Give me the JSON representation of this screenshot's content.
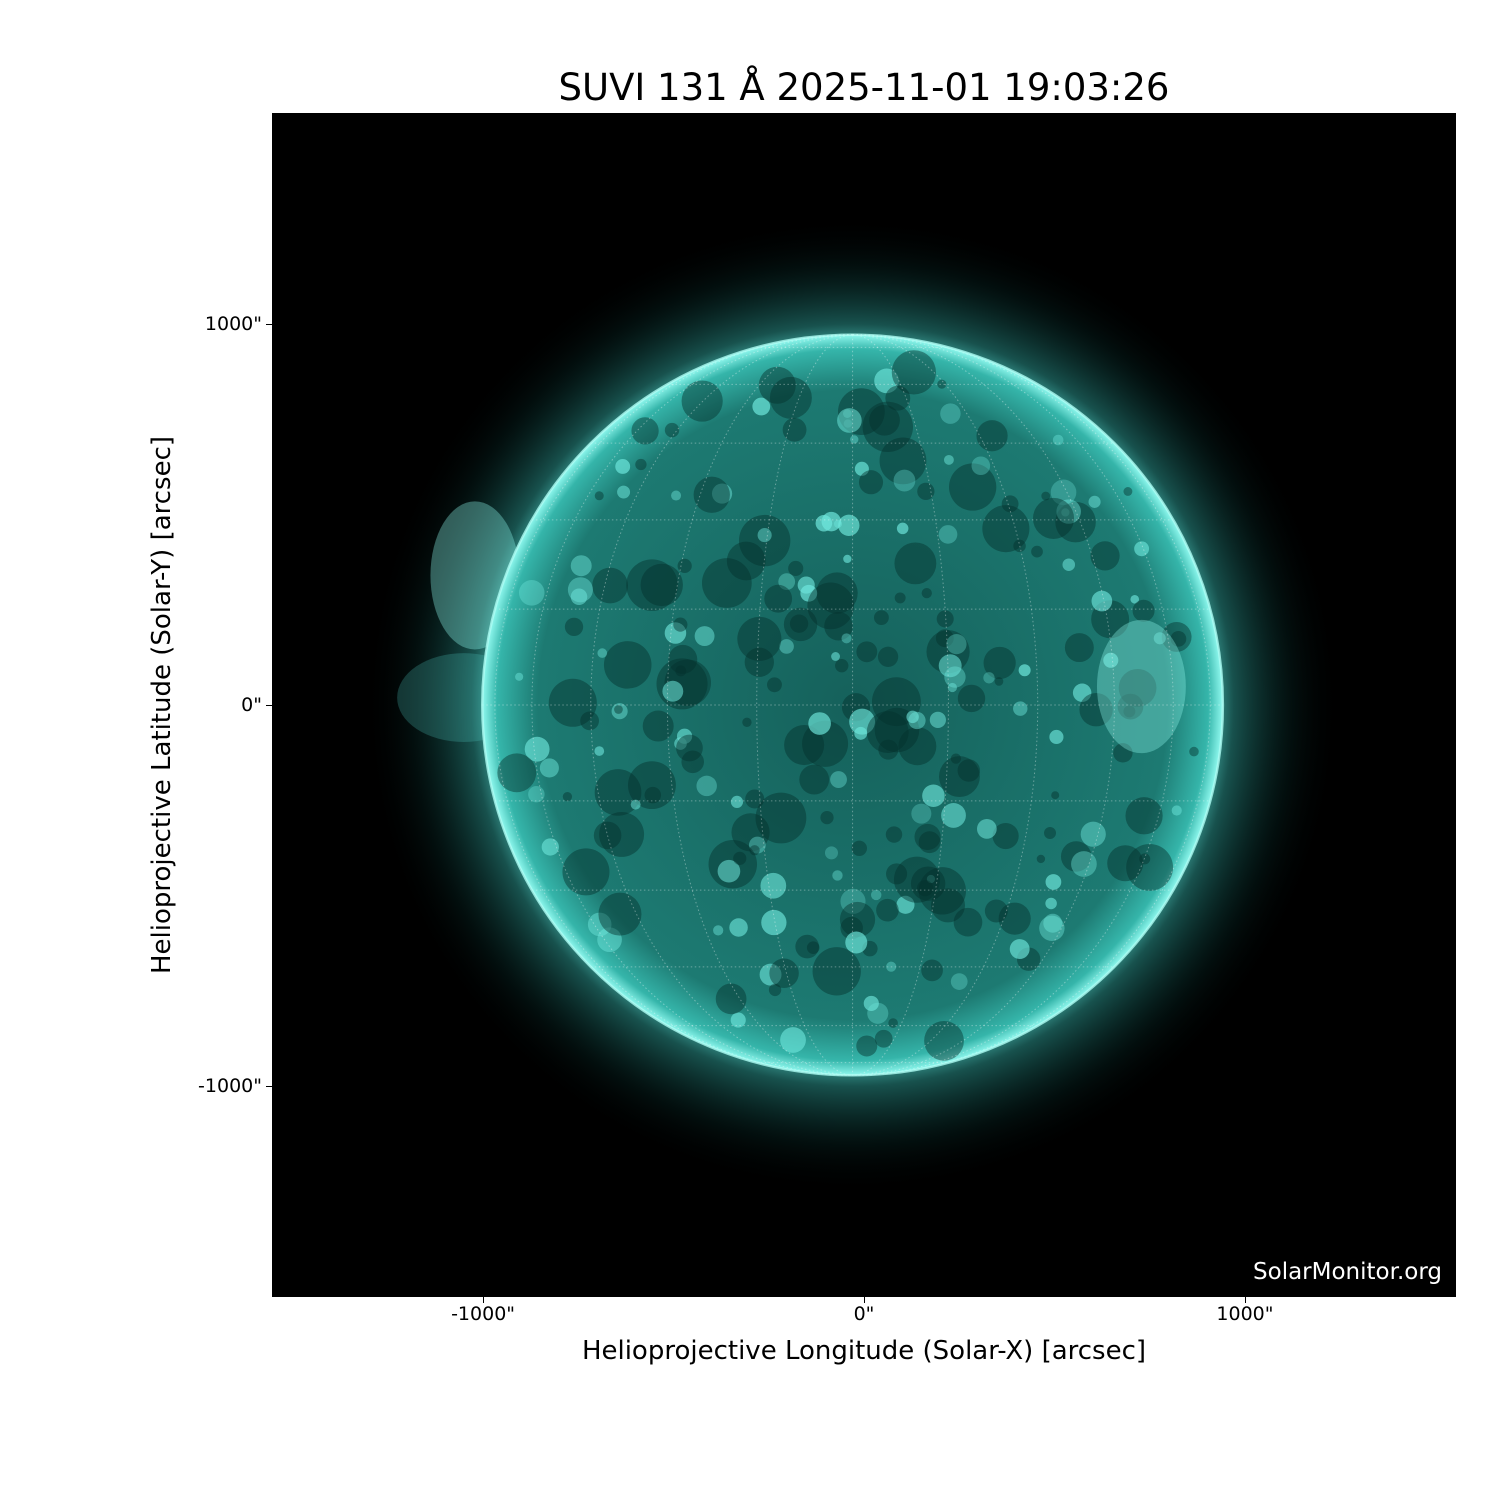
{
  "chart_data": {
    "type": "image",
    "title": "SUVI 131 Å 2025-11-01 19:03:26",
    "xlabel": "Helioprojective Longitude (Solar-X) [arcsec]",
    "ylabel": "Helioprojective Latitude (Solar-Y) [arcsec]",
    "xlim": [
      -1554,
      1554
    ],
    "ylim": [
      -1554,
      1554
    ],
    "x_ticks": [
      {
        "value": -1000,
        "label": "-1000\""
      },
      {
        "value": 0,
        "label": "0\""
      },
      {
        "value": 1000,
        "label": "1000\""
      }
    ],
    "y_ticks": [
      {
        "value": 1000,
        "label": "1000\""
      },
      {
        "value": 0,
        "label": "0\""
      },
      {
        "value": -1000,
        "label": "-1000\""
      }
    ],
    "solar_radius_arcsec": 972,
    "grid": "heliographic lon/lat every 15°",
    "colormap": "teal (SUVI 131)",
    "disk_color": "#2aa8a0",
    "limb_color": "#7ff5ea",
    "background_color": "#000000",
    "watermark": "SolarMonitor.org"
  }
}
